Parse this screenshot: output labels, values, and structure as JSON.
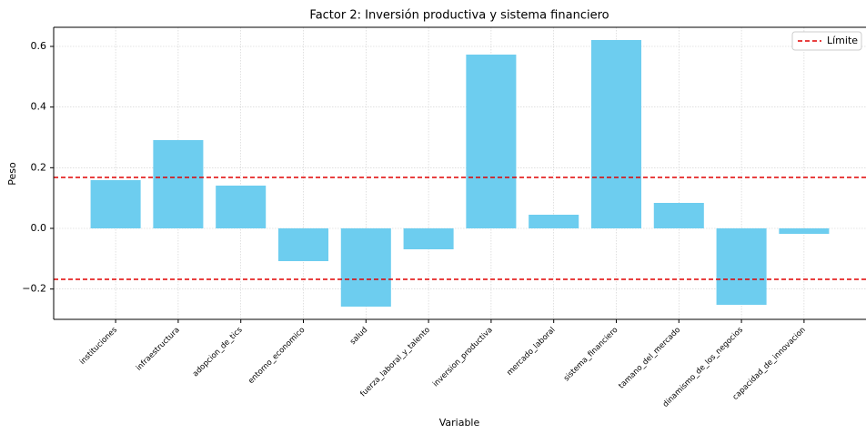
{
  "chart_data": {
    "type": "bar",
    "title": "Factor 2: Inversión productiva y sistema financiero",
    "x_label": "Variable",
    "y_label": "Peso",
    "categories": [
      "instituciones",
      "infraestructura",
      "adopcion_de_tics",
      "entorno_economico",
      "salud",
      "fuerza_laboral_y_talento",
      "inversion_productiva",
      "mercado_laboral",
      "sistema_financiero",
      "tamano_del_mercado",
      "dinamismo_de_los_negocios",
      "capacidad_de_innovacion"
    ],
    "values": [
      0.159,
      0.291,
      0.141,
      -0.108,
      -0.258,
      -0.069,
      0.573,
      0.045,
      0.621,
      0.084,
      -0.252,
      -0.018
    ],
    "color": "#6dcdef",
    "reference_lines": {
      "name": "Límite",
      "color": "#e00000",
      "values": [
        0.168,
        -0.168
      ]
    },
    "ylim": [
      -0.3,
      0.663
    ],
    "yticks": [
      {
        "value": -0.2,
        "label": "−0.2"
      },
      {
        "value": 0,
        "label": "0.0"
      },
      0.2,
      0.4,
      0.6
    ],
    "grid": true,
    "legend_position": "upper right"
  }
}
